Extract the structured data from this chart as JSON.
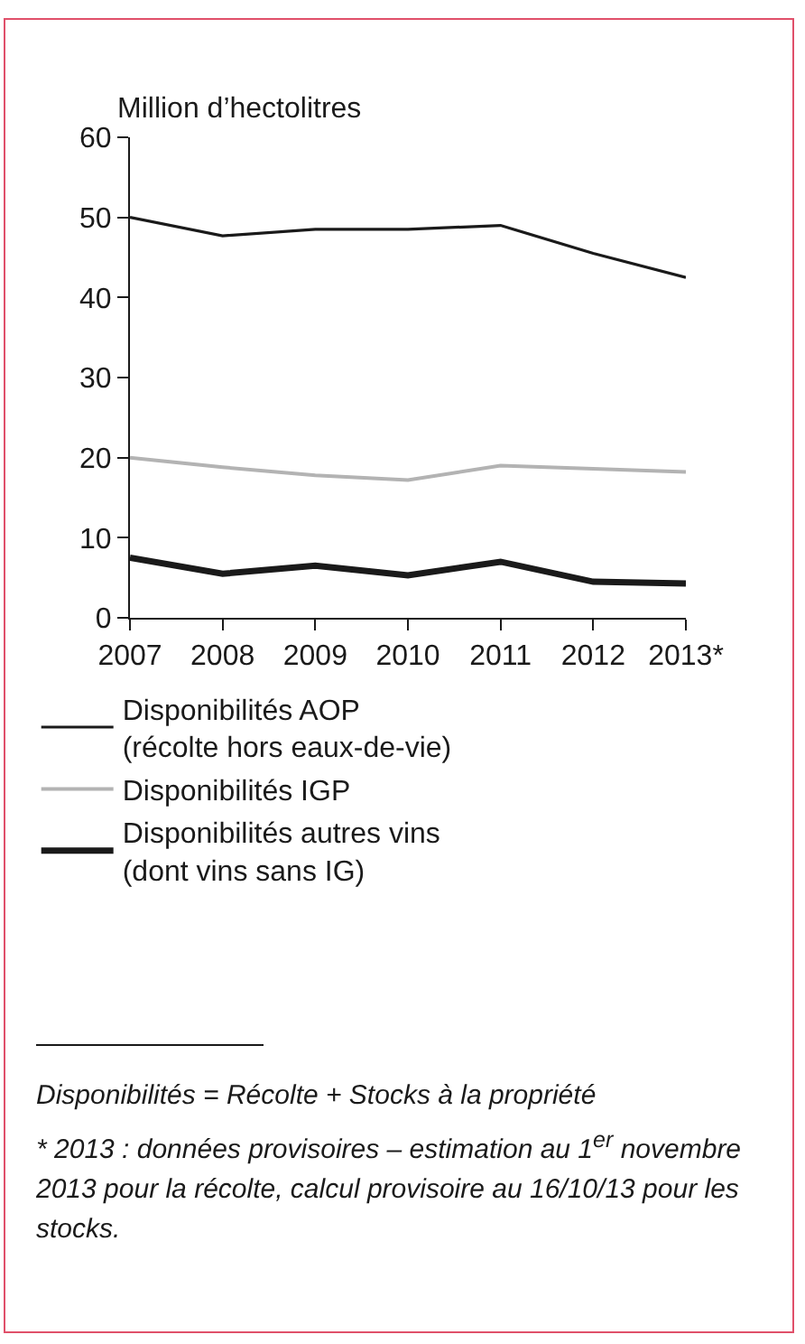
{
  "chart_data": {
    "type": "line",
    "ylabel": "Million d’hectolitres",
    "categories": [
      "2007",
      "2008",
      "2009",
      "2010",
      "2011",
      "2012",
      "2013*"
    ],
    "series": [
      {
        "name": "Disponibilités AOP (récolte hors eaux-de-vie)",
        "color": "#1a1a1a",
        "values": [
          50,
          47.7,
          48.5,
          48.5,
          49,
          45.5,
          42.5
        ]
      },
      {
        "name": "Disponibilités IGP",
        "color": "#b3b3b3",
        "values": [
          20,
          18.8,
          17.8,
          17.2,
          19,
          18.6,
          18.2
        ]
      },
      {
        "name": "Disponibilités autres vins (dont vins sans IG)",
        "color": "#1a1a1a",
        "values": [
          7.5,
          5.5,
          6.5,
          5.3,
          7,
          4.5,
          4.3
        ]
      }
    ],
    "ylim": [
      0,
      60
    ],
    "yticks": [
      0,
      10,
      20,
      30,
      40,
      50,
      60
    ],
    "grid": false,
    "legend": "bottom",
    "marker": "none",
    "line_style": "solid",
    "annotations": [
      "Disponibilités = Récolte + Stocks à la propriété",
      "* 2013 : données provisoires – estimation au 1$^{er}$ novembre 2013 pour la récolte, calcul provisoire au 16/10/13 pour les stocks."
    ]
  }
}
